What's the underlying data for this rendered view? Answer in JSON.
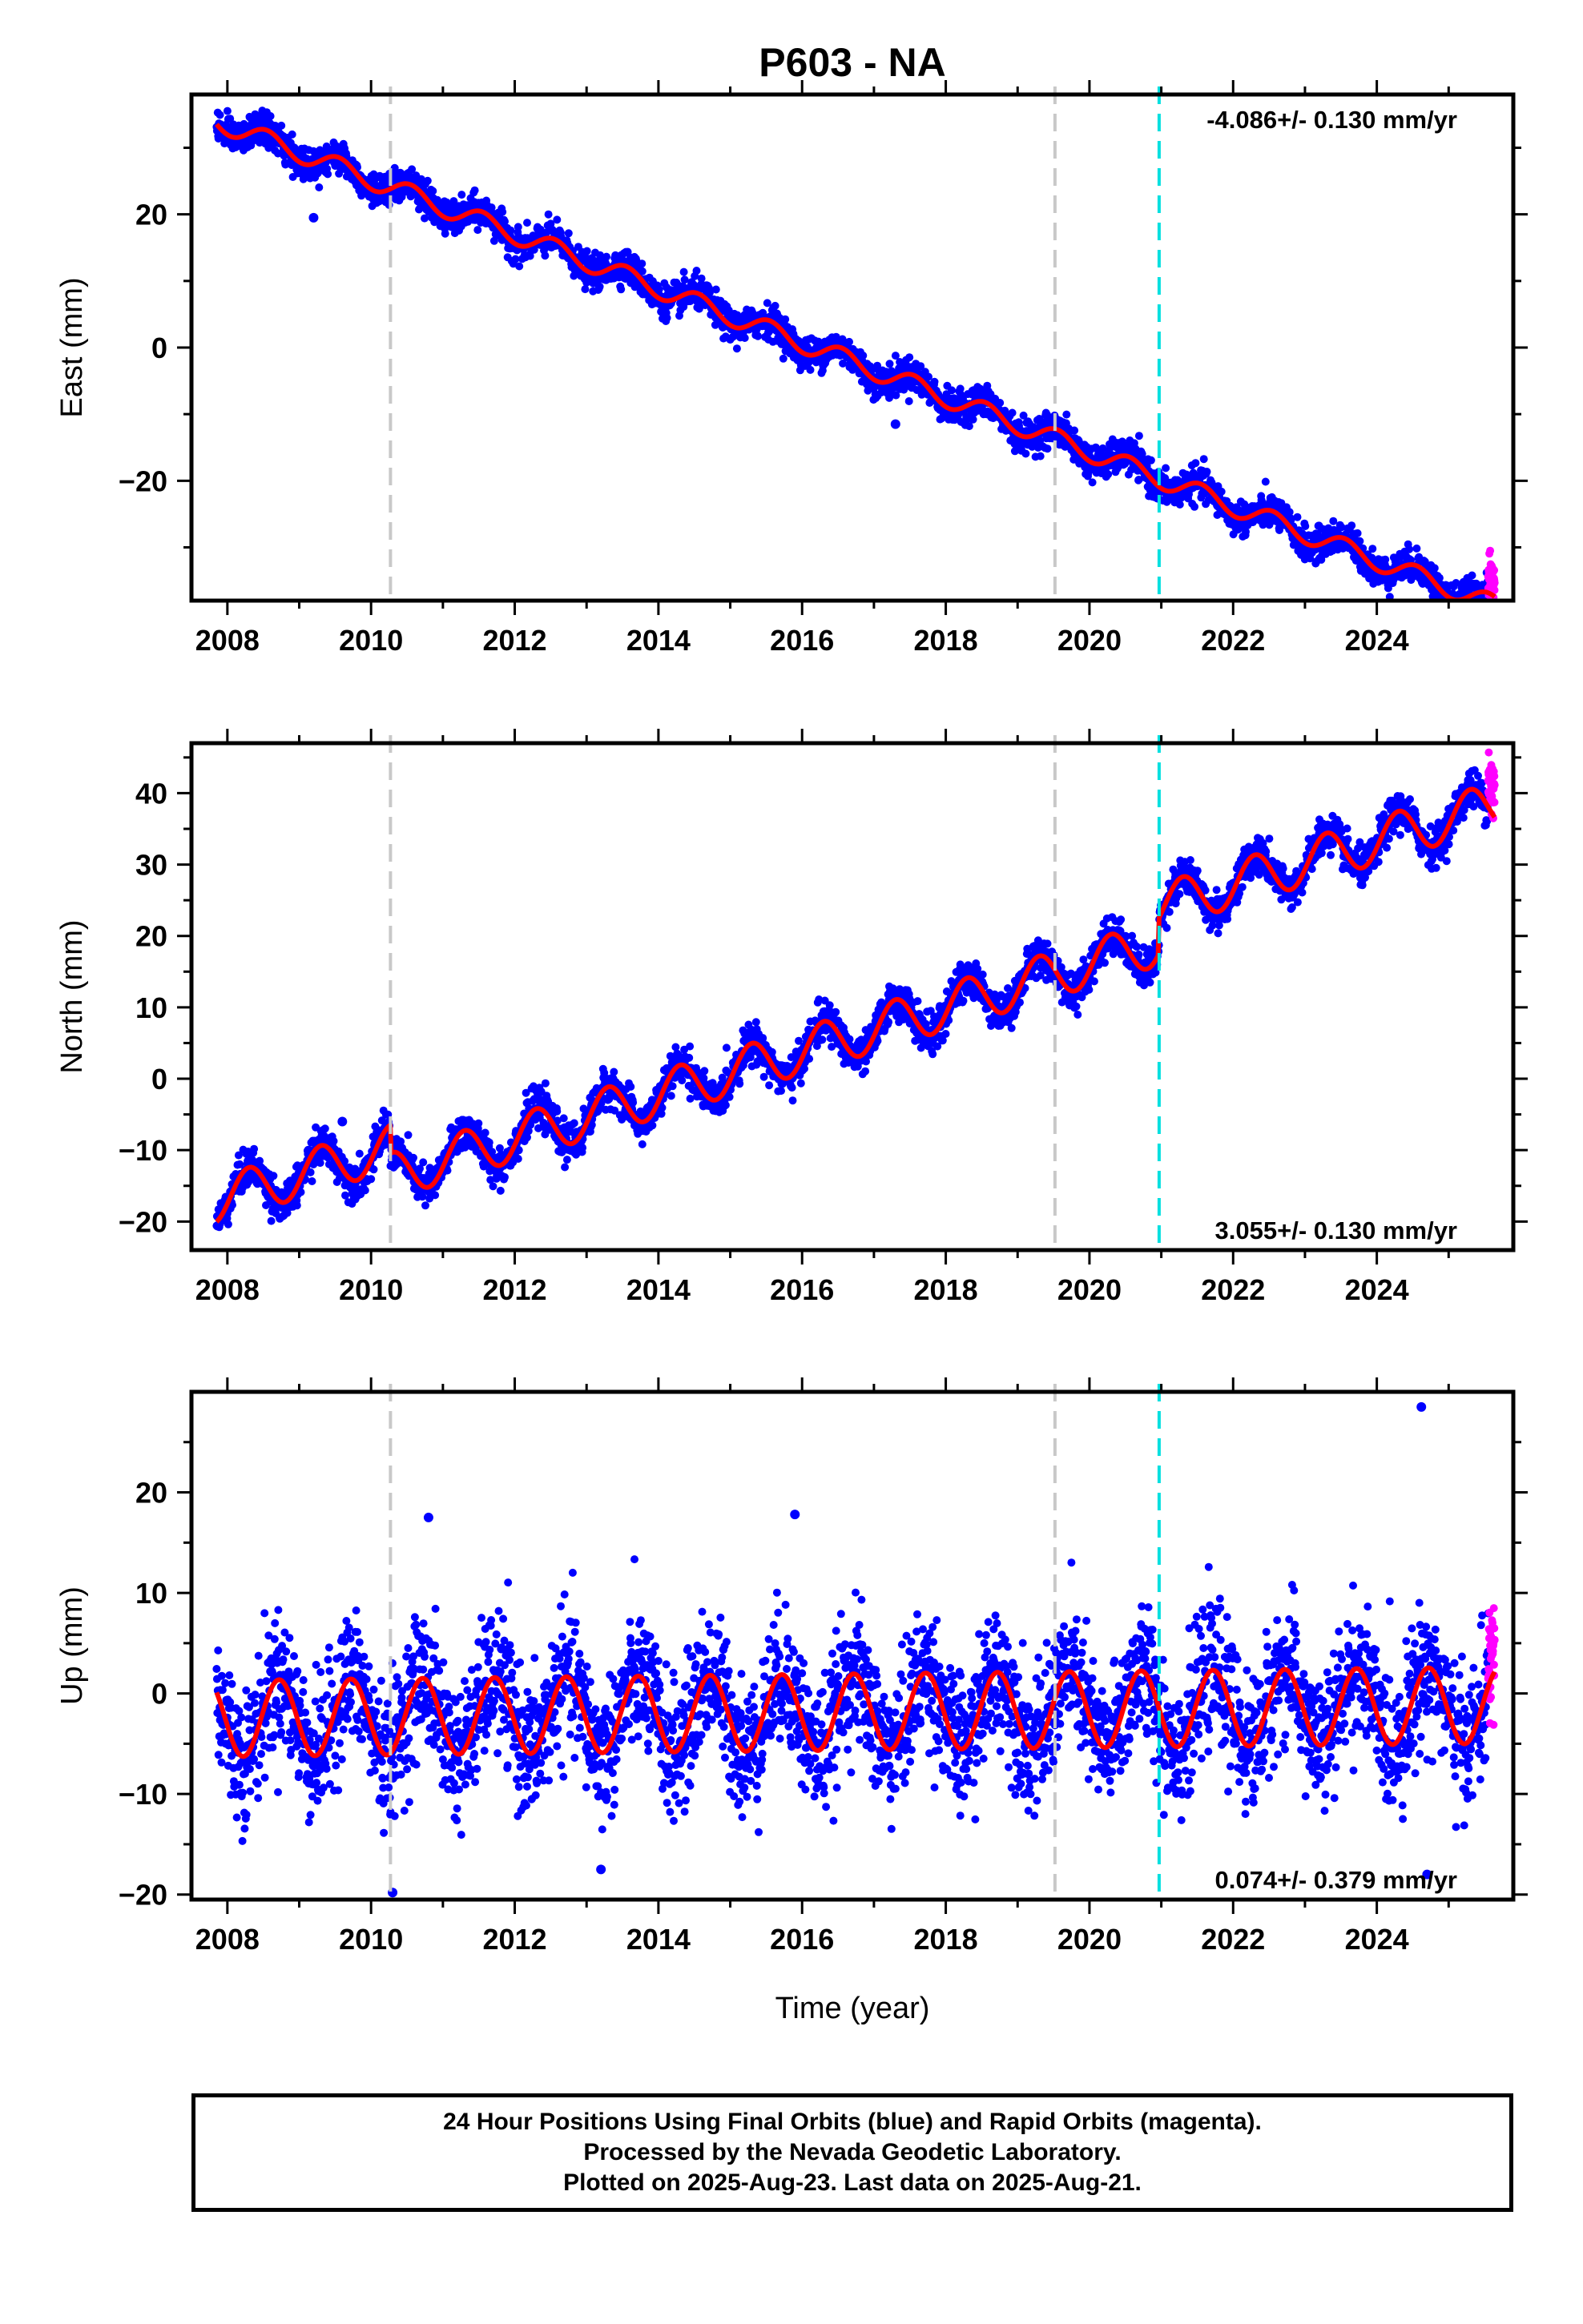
{
  "title": "P603 - NA",
  "xlabel": "Time (year)",
  "colors": {
    "final": "#0000ff",
    "rapid": "#ff00ff",
    "model": "#ff0000",
    "event_gray": "#c8c8c8",
    "event_cyan": "#00e0e0",
    "frame": "#000000"
  },
  "chart_data": [
    {
      "type": "scatter",
      "name": "east",
      "ylabel": "East (mm)",
      "rate_label": "-4.086+/- 0.130 mm/yr",
      "rate_position": "top-right",
      "xlim": [
        2007.5,
        2025.9
      ],
      "ylim": [
        -38,
        38
      ],
      "xticks": [
        2008,
        2010,
        2012,
        2014,
        2016,
        2018,
        2020,
        2022,
        2024
      ],
      "xtick_labels": [
        "2008",
        "2010",
        "2012",
        "2014",
        "2016",
        "2018",
        "2020",
        "2022",
        "2024"
      ],
      "yticks": [
        -20,
        0,
        20
      ],
      "ytick_labels": [
        "−20",
        "0",
        "20"
      ],
      "data_start": 2007.85,
      "data_end": 2025.64,
      "rapid_start": 2025.55,
      "trend": {
        "t0": 2007.85,
        "y0": 34.0,
        "rate": -4.086
      },
      "steps": [],
      "seasonal": {
        "amp": 1.5,
        "phase_year": 0.55
      },
      "scatter_sd": 1.2,
      "rapid_offset": 3.0,
      "outliers": [
        {
          "x": 2009.2,
          "y": 19.5
        },
        {
          "x": 2017.3,
          "y": -11.5
        }
      ],
      "events_gray": [
        2010.27,
        2019.52
      ],
      "events_cyan": [
        2020.97
      ]
    },
    {
      "type": "scatter",
      "name": "north",
      "ylabel": "North (mm)",
      "rate_label": "3.055+/- 0.130 mm/yr",
      "rate_position": "bottom-right",
      "xlim": [
        2007.5,
        2025.9
      ],
      "ylim": [
        -24,
        47
      ],
      "xticks": [
        2008,
        2010,
        2012,
        2014,
        2016,
        2018,
        2020,
        2022,
        2024
      ],
      "xtick_labels": [
        "2008",
        "2010",
        "2012",
        "2014",
        "2016",
        "2018",
        "2020",
        "2022",
        "2024"
      ],
      "yticks": [
        -20,
        -10,
        0,
        10,
        20,
        30,
        40
      ],
      "ytick_labels": [
        "−20",
        "−10",
        "0",
        "10",
        "20",
        "30",
        "40"
      ],
      "data_start": 2007.85,
      "data_end": 2025.64,
      "rapid_start": 2025.55,
      "trend": {
        "t0": 2007.85,
        "y0": -17.0,
        "rate": 3.055
      },
      "steps": [
        {
          "x": 2010.27,
          "dy": -4.0
        },
        {
          "x": 2020.97,
          "dy": 5.0
        }
      ],
      "seasonal": {
        "amp": 3.2,
        "phase_year": 0.3
      },
      "scatter_sd": 1.3,
      "rapid_offset": 5.0,
      "outliers": [
        {
          "x": 2009.6,
          "y": -6.0
        }
      ],
      "events_gray": [
        2010.27,
        2019.52
      ],
      "events_cyan": [
        2020.97
      ]
    },
    {
      "type": "scatter",
      "name": "up",
      "ylabel": "Up (mm)",
      "rate_label": "0.074+/- 0.379 mm/yr",
      "rate_position": "bottom-right",
      "xlim": [
        2007.5,
        2025.9
      ],
      "ylim": [
        -20.5,
        30
      ],
      "xticks": [
        2008,
        2010,
        2012,
        2014,
        2016,
        2018,
        2020,
        2022,
        2024
      ],
      "xtick_labels": [
        "2008",
        "2010",
        "2012",
        "2014",
        "2016",
        "2018",
        "2020",
        "2022",
        "2024"
      ],
      "yticks": [
        -20,
        -10,
        0,
        10,
        20
      ],
      "ytick_labels": [
        "−20",
        "−10",
        "0",
        "10",
        "20"
      ],
      "data_start": 2007.85,
      "data_end": 2025.64,
      "rapid_start": 2025.55,
      "trend": {
        "t0": 2007.85,
        "y0": -2.5,
        "rate": 0.074
      },
      "steps": [],
      "seasonal": {
        "amp": 3.8,
        "phase_year": 0.72
      },
      "scatter_sd": 3.3,
      "rapid_offset": 2.0,
      "outliers": [
        {
          "x": 2024.62,
          "y": 28.5
        },
        {
          "x": 2010.8,
          "y": 17.5
        },
        {
          "x": 2015.9,
          "y": 17.8
        },
        {
          "x": 2013.2,
          "y": -17.5
        },
        {
          "x": 2010.3,
          "y": -19.8
        },
        {
          "x": 2024.7,
          "y": -18.0
        }
      ],
      "events_gray": [
        2010.27,
        2019.52
      ],
      "events_cyan": [
        2020.97
      ]
    }
  ],
  "caption": {
    "line1": "24 Hour Positions Using Final Orbits (blue) and Rapid Orbits (magenta).",
    "line2": "Processed by the Nevada Geodetic Laboratory.",
    "line3": "Plotted on 2025-Aug-23. Last data on 2025-Aug-21."
  }
}
